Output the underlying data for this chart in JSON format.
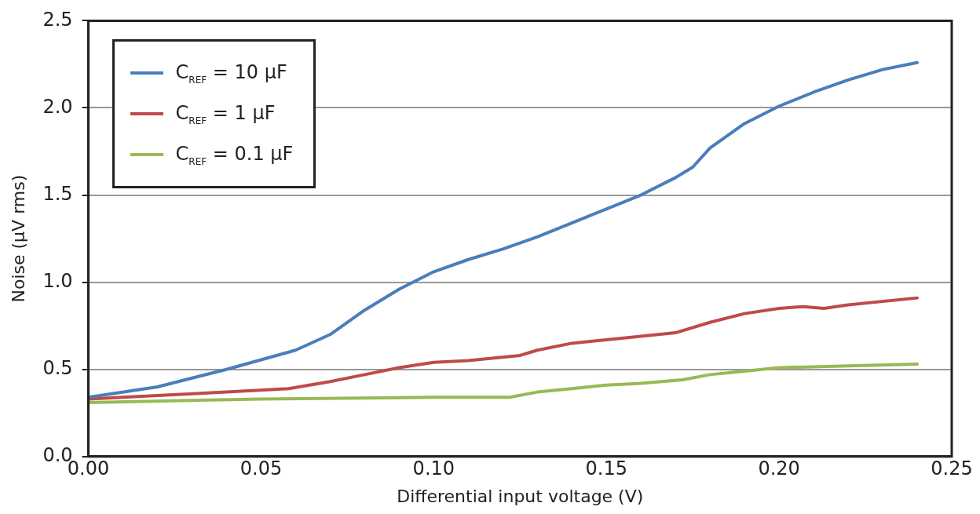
{
  "chart_data": {
    "type": "line",
    "xlabel": "Differential input voltage (V)",
    "ylabel": "Noise (μV rms)",
    "xlim": [
      0,
      0.25
    ],
    "ylim": [
      0,
      2.5
    ],
    "xticks": [
      {
        "value": 0,
        "label": "0.00"
      },
      {
        "value": 0.05,
        "label": "0.05"
      },
      {
        "value": 0.1,
        "label": "0.10"
      },
      {
        "value": 0.15,
        "label": "0.15"
      },
      {
        "value": 0.2,
        "label": "0.20"
      },
      {
        "value": 0.25,
        "label": "0.25"
      }
    ],
    "yticks": [
      {
        "value": 0,
        "label": "0.0"
      },
      {
        "value": 0.5,
        "label": "0.5"
      },
      {
        "value": 1,
        "label": "1.0"
      },
      {
        "value": 1.5,
        "label": "1.5"
      },
      {
        "value": 2,
        "label": "2.0"
      },
      {
        "value": 2.5,
        "label": "2.5"
      }
    ],
    "grid": "y",
    "legend": "top left",
    "marker": "none",
    "line_style": "solid",
    "series": [
      {
        "name": "C$_{REF}$ = 10 μF",
        "color": "#4a7ebb",
        "x": [
          0,
          0.02,
          0.04,
          0.06,
          0.07,
          0.08,
          0.09,
          0.1,
          0.11,
          0.12,
          0.13,
          0.14,
          0.15,
          0.16,
          0.17,
          0.175,
          0.18,
          0.19,
          0.2,
          0.21,
          0.22,
          0.23,
          0.24
        ],
        "values": [
          0.34,
          0.4,
          0.5,
          0.61,
          0.7,
          0.84,
          0.96,
          1.06,
          1.13,
          1.19,
          1.26,
          1.34,
          1.42,
          1.5,
          1.6,
          1.66,
          1.77,
          1.91,
          2.01,
          2.09,
          2.16,
          2.22,
          2.26
        ]
      },
      {
        "name": "C$_{REF}$ = 1 μF",
        "color": "#be4b48",
        "x": [
          0,
          0.02,
          0.04,
          0.058,
          0.07,
          0.08,
          0.09,
          0.1,
          0.11,
          0.125,
          0.13,
          0.14,
          0.15,
          0.16,
          0.17,
          0.18,
          0.19,
          0.2,
          0.207,
          0.213,
          0.22,
          0.24
        ],
        "values": [
          0.33,
          0.35,
          0.37,
          0.39,
          0.43,
          0.47,
          0.51,
          0.54,
          0.55,
          0.58,
          0.61,
          0.65,
          0.67,
          0.69,
          0.71,
          0.77,
          0.82,
          0.85,
          0.86,
          0.85,
          0.87,
          0.91
        ]
      },
      {
        "name": "C$_{REF}$ = 0.1 μF",
        "color": "#98b954",
        "x": [
          0,
          0.05,
          0.1,
          0.122,
          0.13,
          0.14,
          0.15,
          0.16,
          0.172,
          0.18,
          0.19,
          0.2,
          0.22,
          0.24
        ],
        "values": [
          0.31,
          0.33,
          0.34,
          0.34,
          0.37,
          0.39,
          0.41,
          0.42,
          0.44,
          0.47,
          0.49,
          0.51,
          0.52,
          0.53
        ]
      }
    ]
  }
}
